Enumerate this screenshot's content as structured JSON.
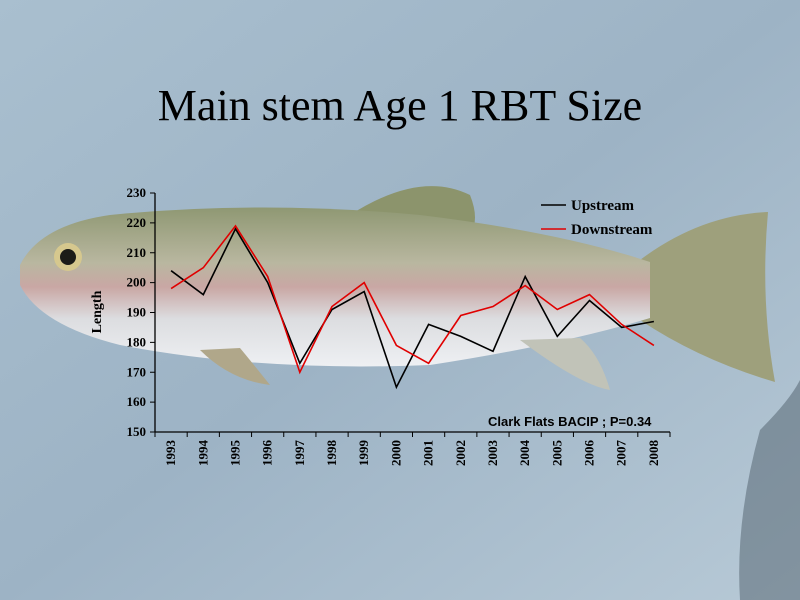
{
  "slide": {
    "title": "Main stem Age 1 RBT Size"
  },
  "chart_data": {
    "type": "line",
    "title": "",
    "xlabel": "",
    "ylabel": "Length",
    "ylim": [
      150,
      230
    ],
    "yticks": [
      150,
      160,
      170,
      180,
      190,
      200,
      210,
      220,
      230
    ],
    "grid": false,
    "legend_position": "top-right",
    "categories": [
      "1993",
      "1994",
      "1995",
      "1996",
      "1997",
      "1998",
      "1999",
      "2000",
      "2001",
      "2002",
      "2003",
      "2004",
      "2005",
      "2006",
      "2007",
      "2008"
    ],
    "series": [
      {
        "name": "Upstream",
        "color": "#000000",
        "values": [
          204,
          196,
          218,
          200,
          173,
          191,
          197,
          165,
          186,
          182,
          177,
          202,
          182,
          194,
          185,
          187
        ]
      },
      {
        "name": "Downstream",
        "color": "#e00000",
        "values": [
          198,
          205,
          219,
          202,
          170,
          192,
          200,
          179,
          173,
          189,
          192,
          199,
          191,
          196,
          186,
          179
        ]
      }
    ],
    "annotation": "Clark Flats BACIP ; P=0.34"
  }
}
